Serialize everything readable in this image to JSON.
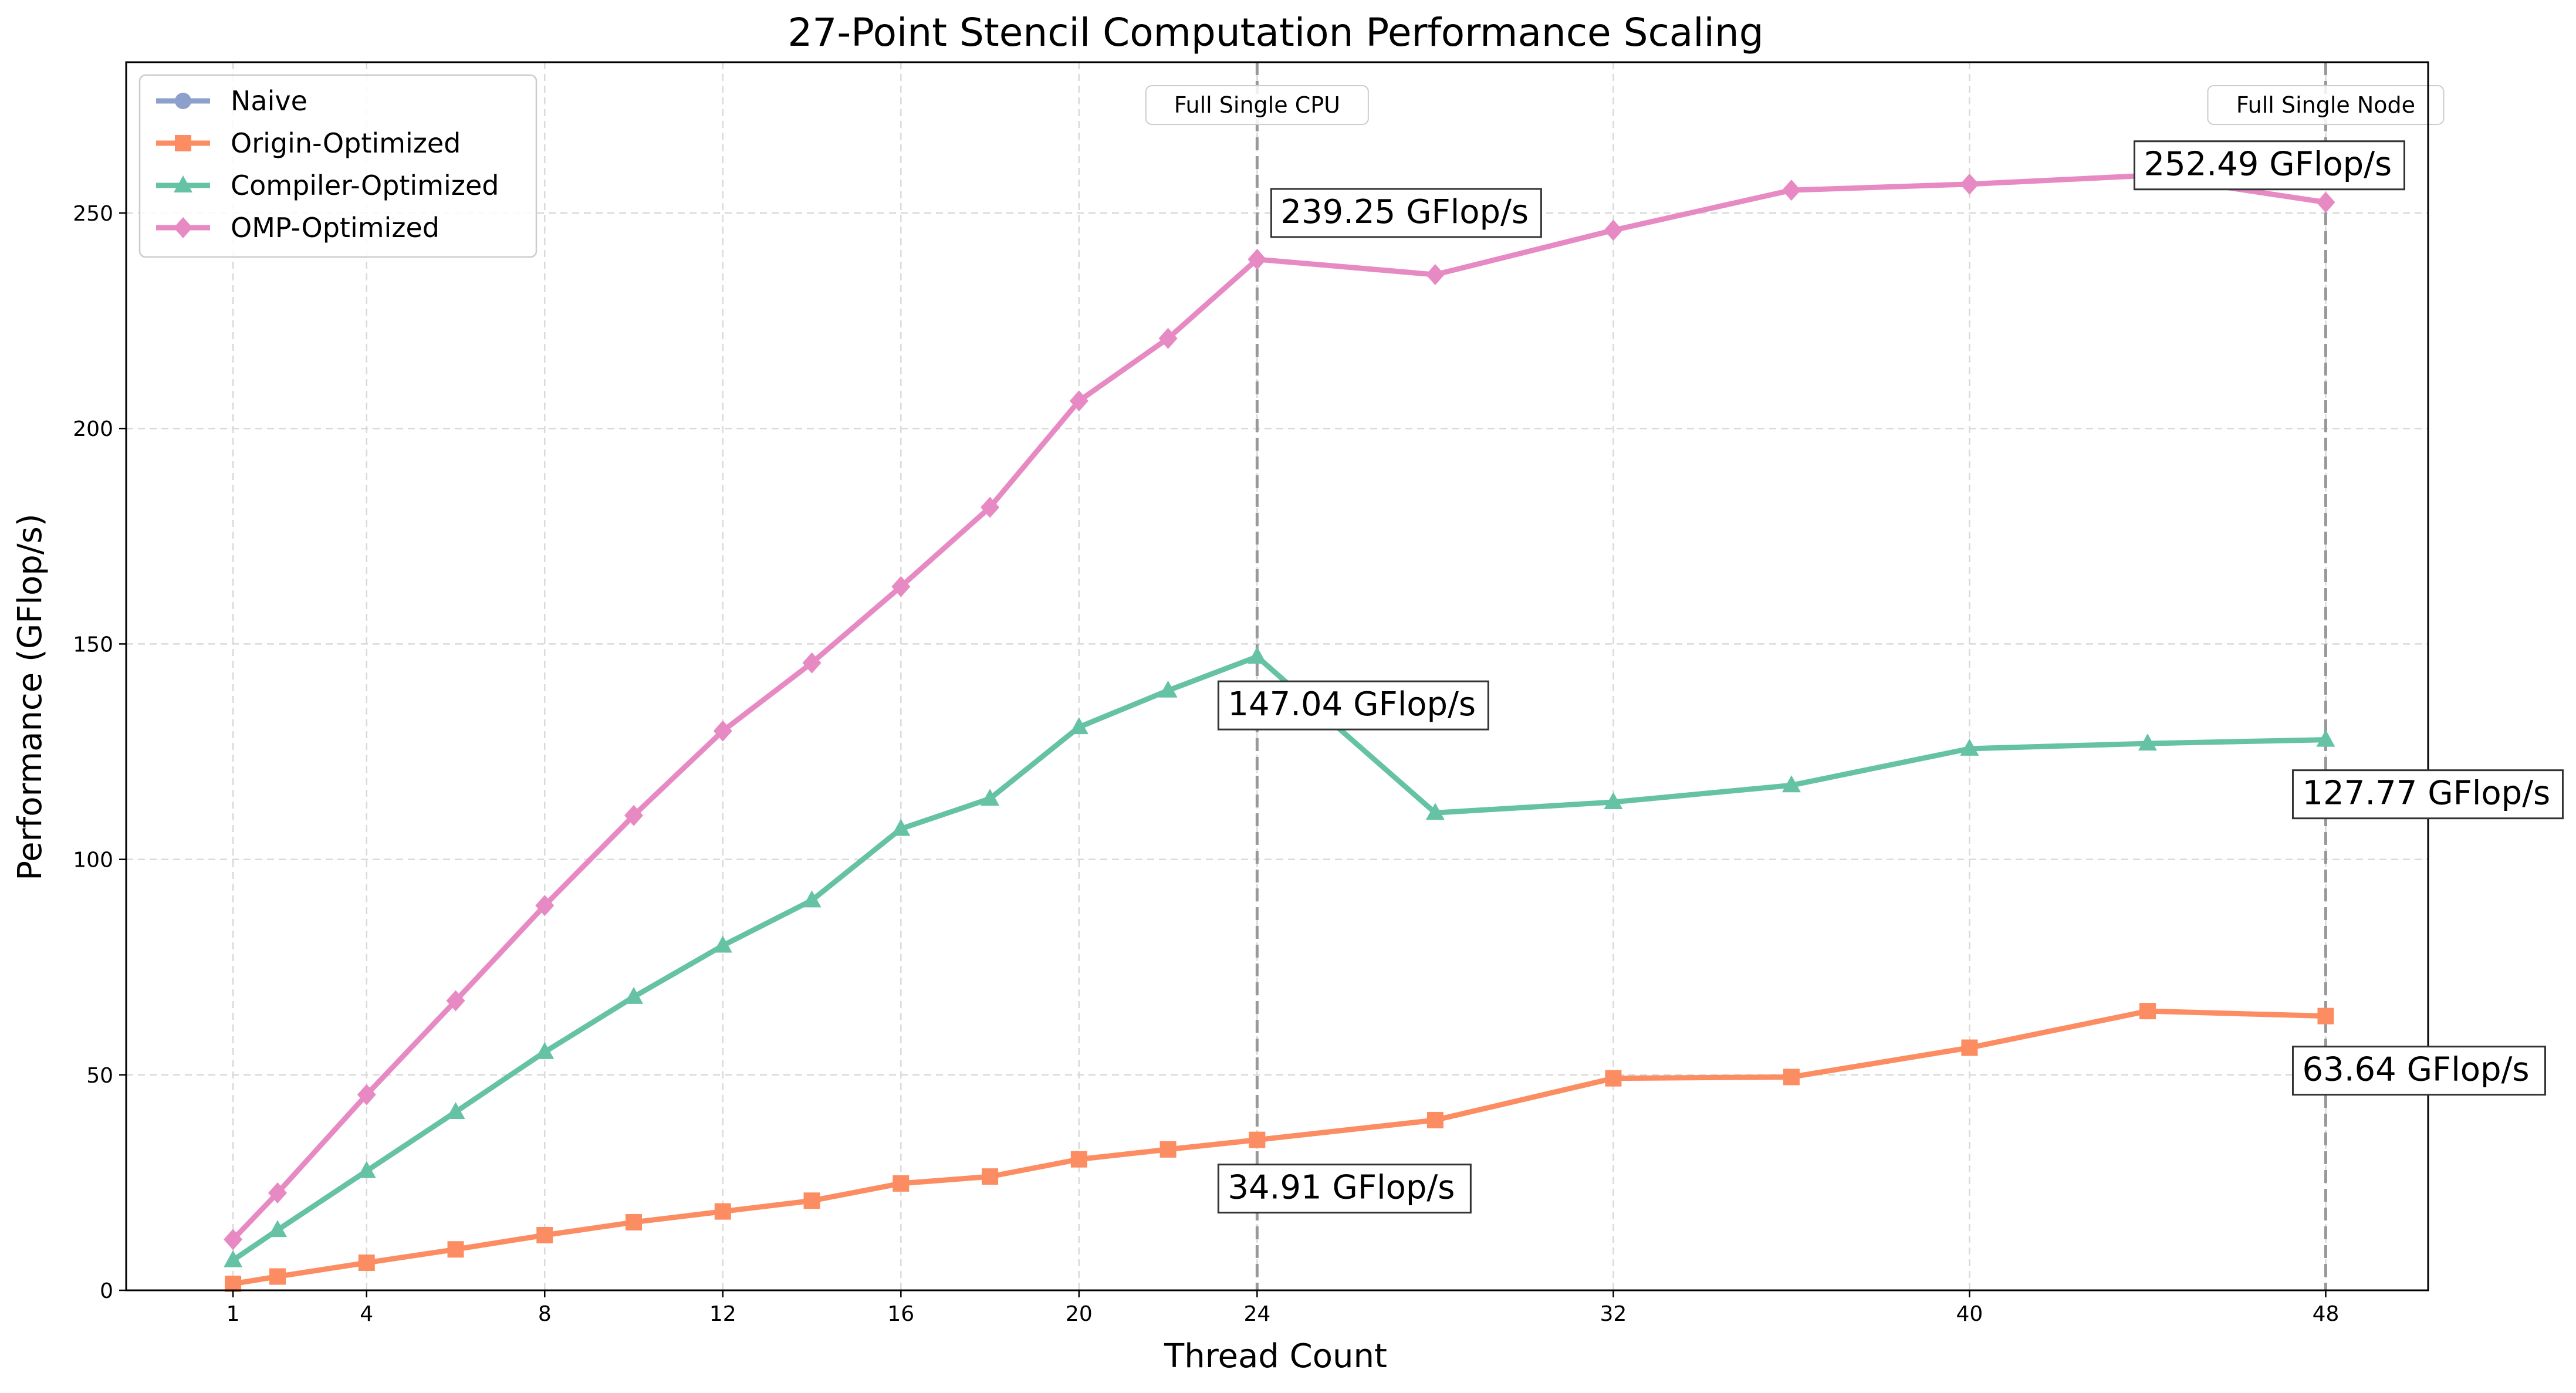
{
  "chart_data": {
    "type": "line",
    "title": "27-Point Stencil Computation Performance Scaling",
    "xlabel": "Thread Count",
    "ylabel": "Performance (GFlop/s)",
    "xlim": [
      -1.4,
      50.3
    ],
    "ylim": [
      0,
      285
    ],
    "xticks": [
      1,
      4,
      8,
      12,
      16,
      20,
      24,
      32,
      40,
      48
    ],
    "yticks": [
      0,
      50,
      100,
      150,
      200,
      250
    ],
    "grid": true,
    "legend": "top-left",
    "series": [
      {
        "name": "Naive",
        "color": "#8da0cb",
        "marker": "circle",
        "x": [],
        "y": []
      },
      {
        "name": "Origin-Optimized",
        "color": "#fc8d62",
        "marker": "square",
        "x": [
          1,
          2,
          4,
          6,
          8,
          10,
          12,
          14,
          16,
          18,
          20,
          22,
          24,
          28,
          32,
          36,
          40,
          44,
          48
        ],
        "y": [
          1.5,
          3.2,
          6.4,
          9.5,
          12.8,
          15.8,
          18.3,
          20.8,
          24.8,
          26.4,
          30.4,
          32.7,
          34.91,
          39.5,
          49.2,
          49.5,
          56.3,
          64.8,
          63.64
        ]
      },
      {
        "name": "Compiler-Optimized",
        "color": "#66c2a5",
        "marker": "triangle",
        "x": [
          1,
          2,
          4,
          6,
          8,
          10,
          12,
          14,
          16,
          18,
          20,
          22,
          24,
          28,
          32,
          36,
          40,
          44,
          48
        ],
        "y": [
          7.0,
          14.0,
          27.7,
          41.4,
          55.3,
          68.1,
          80.0,
          90.5,
          107.1,
          114.1,
          130.7,
          139.2,
          147.04,
          110.8,
          113.3,
          117.2,
          125.7,
          126.9,
          127.77
        ]
      },
      {
        "name": "OMP-Optimized",
        "color": "#e78ac3",
        "marker": "diamond",
        "x": [
          1,
          2,
          4,
          6,
          8,
          10,
          12,
          14,
          16,
          18,
          20,
          22,
          24,
          28,
          32,
          36,
          40,
          44,
          48
        ],
        "y": [
          11.8,
          22.6,
          45.4,
          67.2,
          89.3,
          110.2,
          129.8,
          145.6,
          163.3,
          181.7,
          206.4,
          220.9,
          239.25,
          235.7,
          246.0,
          255.3,
          256.7,
          258.7,
          252.49
        ]
      }
    ],
    "vlines": [
      {
        "x": 24,
        "label": "Full Single CPU"
      },
      {
        "x": 48,
        "label": "Full Single Node"
      }
    ],
    "annotations": [
      {
        "text": "239.25 GFlop/s",
        "x": 24,
        "y": 239.25,
        "position": "above-right"
      },
      {
        "text": "147.04 GFlop/s",
        "x": 24,
        "y": 147.04,
        "position": "below"
      },
      {
        "text": "34.91 GFlop/s",
        "x": 24,
        "y": 34.91,
        "position": "below"
      },
      {
        "text": "252.49 GFlop/s",
        "x": 48,
        "y": 252.49,
        "position": "above-left"
      },
      {
        "text": "127.77 GFlop/s",
        "x": 48,
        "y": 127.77,
        "position": "below-right"
      },
      {
        "text": "63.64 GFlop/s",
        "x": 48,
        "y": 63.64,
        "position": "below-right"
      }
    ]
  }
}
